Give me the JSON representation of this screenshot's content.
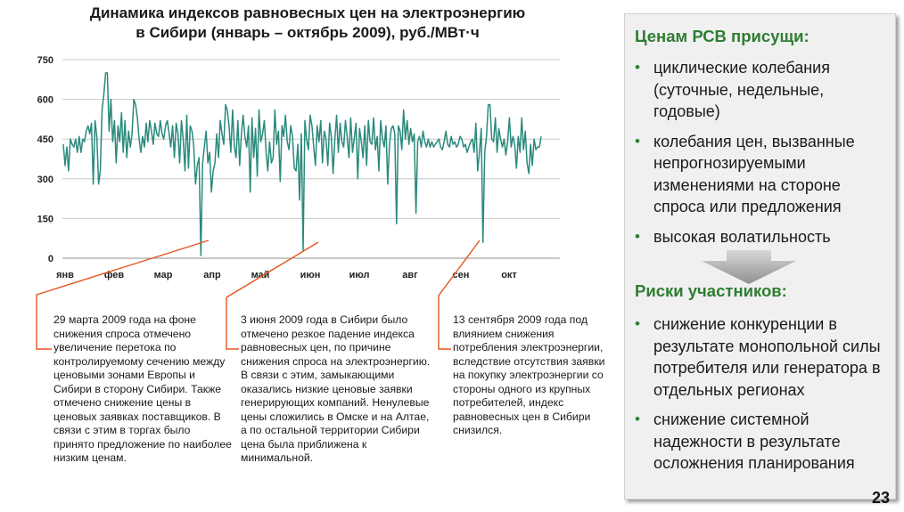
{
  "chart_data": {
    "type": "line",
    "title": "Динамика индексов равновесных цен на электроэнергию в Сибири (январь – октябрь 2009), руб./МВт·ч",
    "title_line1": "Динамика индексов равновесных цен на электроэнергию",
    "title_line2": "в Сибири (январь – октябрь 2009), руб./МВт·ч",
    "ylim": [
      0,
      750
    ],
    "yticks": [
      0,
      150,
      300,
      450,
      600,
      750
    ],
    "months": [
      "янв",
      "фев",
      "мар",
      "апр",
      "май",
      "июн",
      "июл",
      "авг",
      "сен",
      "окт"
    ],
    "grid": true,
    "series_color": "#2a8a7c",
    "series": [
      {
        "x_start": 1,
        "x_end": 296,
        "values": [
          430,
          350,
          420,
          330,
          450,
          430,
          420,
          450,
          400,
          460,
          400,
          450,
          440,
          480,
          500,
          470,
          510,
          280,
          520,
          460,
          280,
          330,
          560,
          620,
          700,
          700,
          480,
          600,
          440,
          520,
          360,
          500,
          440,
          550,
          400,
          520,
          380,
          480,
          420,
          470,
          600,
          580,
          530,
          450,
          400,
          460,
          420,
          510,
          440,
          520,
          480,
          430,
          510,
          470,
          460,
          520,
          470,
          450,
          500,
          520,
          470,
          420,
          500,
          380,
          510,
          470,
          360,
          520,
          450,
          330,
          540,
          340,
          500,
          480,
          420,
          280,
          350,
          380,
          10,
          360,
          420,
          480,
          360,
          400,
          250,
          330,
          360,
          470,
          380,
          520,
          470,
          430,
          580,
          560,
          500,
          400,
          560,
          420,
          380,
          520,
          350,
          470,
          540,
          460,
          420,
          500,
          250,
          530,
          380,
          490,
          310,
          560,
          440,
          470,
          520,
          400,
          330,
          440,
          360,
          380,
          560,
          430,
          480,
          290,
          500,
          460,
          540,
          440,
          410,
          500,
          460,
          340,
          330,
          430,
          220,
          470,
          30,
          520,
          450,
          410,
          540,
          500,
          420,
          350,
          500,
          440,
          520,
          360,
          480,
          450,
          350,
          510,
          460,
          320,
          450,
          540,
          400,
          510,
          440,
          420,
          520,
          460,
          380,
          530,
          400,
          450,
          510,
          300,
          490,
          440,
          380,
          500,
          350,
          520,
          440,
          430,
          530,
          410,
          460,
          330,
          520,
          450,
          420,
          500,
          280,
          430,
          490,
          500,
          470,
          130,
          500,
          480,
          410,
          560,
          450,
          520,
          430,
          490,
          440,
          470,
          170,
          440,
          460,
          420,
          480,
          440,
          420,
          450,
          420,
          440,
          420,
          430,
          440,
          450,
          420,
          410,
          440,
          480,
          430,
          420,
          460,
          430,
          440,
          420,
          430,
          460,
          450,
          420,
          430,
          400,
          420,
          440,
          450,
          400,
          510,
          330,
          400,
          490,
          60,
          400,
          460,
          580,
          580,
          450,
          440,
          530,
          400,
          490,
          450,
          420,
          450,
          390,
          440,
          530,
          420,
          460,
          430,
          340,
          460,
          400,
          530,
          410,
          480,
          360,
          320,
          430,
          350,
          450,
          410,
          420,
          420,
          460
        ]
      }
    ]
  },
  "notes": [
    {
      "text": "29 марта 2009 года на фоне снижения спроса отмечено увеличение перетока по контролируемому сечению между ценовыми зонами Европы и Сибири в сторону Сибири. Также отмечено снижение цены в ценовых заявках поставщиков. В связи с этим в торгах было принято предложение  по наиболее низким ценам."
    },
    {
      "text": "3 июня 2009 года в Сибири было отмечено резкое падение индекса равновесных цен, по причине снижения спроса на электроэнергию. В связи с этим, замыкающими оказались низкие ценовые заявки генерирующих компаний. Ненулевые цены сложились в Омске и на Алтае, а по остальной территории Сибири цена была приближена к минимальной."
    },
    {
      "text": "13 сентября 2009 года под влиянием снижения потребления электроэнергии, вследствие отсутствия заявки на покупку электроэнергии со стороны одного из крупных потребителей, индекс равновесных цен в Сибири снизился."
    }
  ],
  "panel": {
    "heading1": "Ценам РСВ присущи:",
    "items1": [
      "циклические колебания (суточные, недельные, годовые)",
      "колебания цен, вызванные непрогнозируемыми изменениями на стороне спроса или предложения",
      "высокая волатильность"
    ],
    "heading2": "Риски участников:",
    "items2": [
      "снижение конкуренции в результате монопольной силы потребителя или генератора в отдельных регионах",
      "снижение системной надежности в результате осложнения планирования"
    ],
    "bullet": "•"
  },
  "page_number": "23",
  "colors": {
    "accent_green": "#2e7d32",
    "callout_red": "#e8531f",
    "series": "#2a8a7c"
  }
}
